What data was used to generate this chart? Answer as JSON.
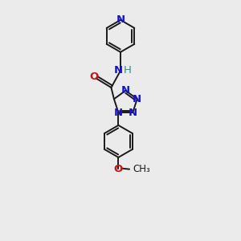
{
  "bg_color": "#ebebeb",
  "bond_color": "#1a1a1a",
  "N_color": "#1414cc",
  "O_color": "#cc1414",
  "NH_color": "#3a8a8a",
  "line_width": 1.4,
  "font_size": 8.5,
  "fig_size": [
    3.0,
    3.0
  ],
  "dpi": 100,
  "xlim": [
    0,
    10
  ],
  "ylim": [
    0,
    14
  ]
}
